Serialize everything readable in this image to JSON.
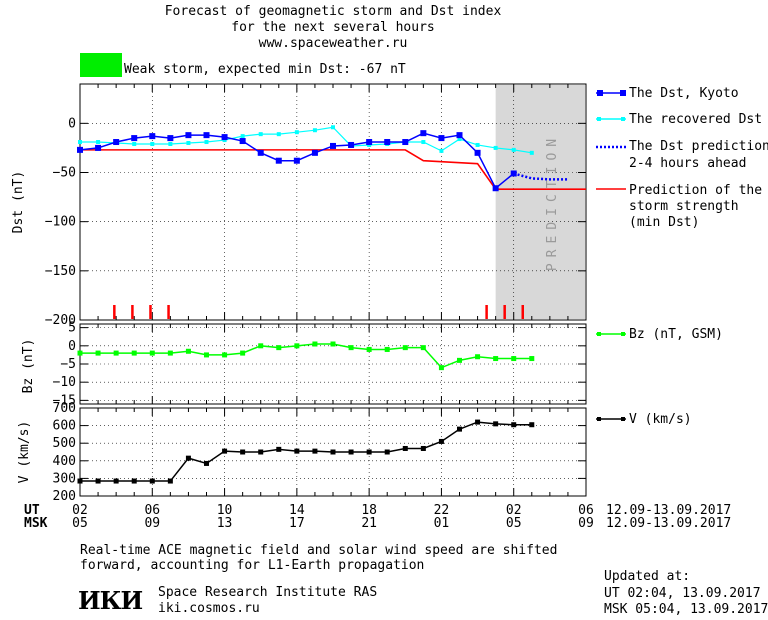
{
  "header": {
    "title_line1": "Forecast of geomagnetic storm and Dst index",
    "title_line2": "for the next several hours",
    "url": "www.spaceweather.ru",
    "storm_color": "#00ee00",
    "storm_text": "Weak storm, expected min Dst: -67 nT"
  },
  "legend": {
    "dst_kyoto": "The Dst, Kyoto",
    "dst_recovered": "The recovered Dst",
    "dst_prediction_line1": "The Dst prediction",
    "dst_prediction_line2": "2-4 hours ahead",
    "storm_strength_line1": "Prediction of the",
    "storm_strength_line2": "storm strength",
    "storm_strength_line3": "(min Dst)",
    "bz": "Bz (nT, GSM)",
    "v": "V (km/s)"
  },
  "prediction_label": "PREDICTION",
  "axes": {
    "ut_label": "UT",
    "msk_label": "MSK",
    "ut_ticks": [
      "02",
      "06",
      "10",
      "14",
      "18",
      "22",
      "02",
      "06"
    ],
    "msk_ticks": [
      "05",
      "09",
      "13",
      "17",
      "21",
      "01",
      "05",
      "09"
    ],
    "date_range_ut": "12.09-13.09.2017",
    "date_range_msk": "12.09-13.09.2017"
  },
  "chart_data": [
    {
      "type": "line",
      "ylabel": "Dst (nT)",
      "ylim": [
        -200,
        40
      ],
      "yticks": [
        0,
        -50,
        -100,
        -150,
        -200
      ],
      "xlim": [
        2,
        30
      ],
      "prediction_start": 25,
      "series": [
        {
          "name": "The Dst, Kyoto",
          "color": "#0000ff",
          "x": [
            2,
            3,
            4,
            5,
            6,
            7,
            8,
            9,
            10,
            11,
            12,
            13,
            14,
            15,
            16,
            17,
            18,
            19,
            20,
            21,
            22,
            23,
            24,
            25,
            26
          ],
          "y": [
            -27,
            -25,
            -19,
            -15,
            -13,
            -15,
            -12,
            -12,
            -14,
            -18,
            -30,
            -38,
            -38,
            -30,
            -23,
            -22,
            -19,
            -19,
            -19,
            -10,
            -15,
            -12,
            -30,
            -66,
            -51
          ]
        },
        {
          "name": "The recovered Dst",
          "color": "#00ffff",
          "x": [
            2,
            3,
            4,
            5,
            6,
            7,
            8,
            9,
            10,
            11,
            12,
            13,
            14,
            15,
            16,
            17,
            18,
            19,
            20,
            21,
            22,
            23,
            24,
            25,
            26,
            27
          ],
          "y": [
            -19,
            -19,
            -20,
            -21,
            -21,
            -21,
            -20,
            -19,
            -17,
            -13,
            -11,
            -11,
            -9,
            -7,
            -4,
            -23,
            -22,
            -21,
            -19,
            -19,
            -28,
            -16,
            -22,
            -25,
            -27,
            -30
          ]
        },
        {
          "name": "The Dst prediction 2-4 hours ahead",
          "color": "#0000ff",
          "x": [
            26,
            27,
            28,
            29
          ],
          "y": [
            -51,
            -56,
            -57,
            -57
          ]
        },
        {
          "name": "Prediction of the storm strength (min Dst)",
          "color": "#ff0000",
          "x": [
            2,
            20,
            21,
            23,
            24,
            25,
            30
          ],
          "y": [
            -27,
            -27,
            -38,
            -40,
            -41,
            -67,
            -67
          ]
        }
      ],
      "event_marks_x": [
        3.9,
        4.9,
        5.9,
        6.9,
        24.5,
        25.5,
        26.5
      ]
    },
    {
      "type": "line",
      "ylabel": "Bz (nT)",
      "ylim": [
        -16,
        6
      ],
      "yticks": [
        5,
        0,
        -5,
        -10,
        -15
      ],
      "series": [
        {
          "name": "Bz (nT, GSM)",
          "color": "#00ff00",
          "x": [
            2,
            3,
            4,
            5,
            6,
            7,
            8,
            9,
            10,
            11,
            12,
            13,
            14,
            15,
            16,
            17,
            18,
            19,
            20,
            21,
            22,
            23,
            24,
            25,
            26,
            27
          ],
          "y": [
            -2,
            -2,
            -2,
            -2,
            -2,
            -2,
            -1.5,
            -2.5,
            -2.5,
            -2,
            0,
            -0.5,
            0,
            0.5,
            0.5,
            -0.5,
            -1,
            -1,
            -0.5,
            -0.5,
            -6,
            -4,
            -3,
            -3.5,
            -3.5,
            -3.5
          ]
        }
      ]
    },
    {
      "type": "line",
      "ylabel": "V (km/s)",
      "ylim": [
        200,
        700
      ],
      "yticks": [
        700,
        600,
        500,
        400,
        300,
        200
      ],
      "series": [
        {
          "name": "V (km/s)",
          "color": "#000000",
          "x": [
            2,
            3,
            4,
            5,
            6,
            7,
            8,
            9,
            10,
            11,
            12,
            13,
            14,
            15,
            16,
            17,
            18,
            19,
            20,
            21,
            22,
            23,
            24,
            25,
            26,
            27
          ],
          "y": [
            285,
            285,
            285,
            285,
            285,
            285,
            415,
            385,
            455,
            450,
            450,
            465,
            455,
            455,
            450,
            450,
            450,
            450,
            470,
            470,
            510,
            580,
            620,
            610,
            605,
            605
          ]
        }
      ]
    }
  ],
  "footer": {
    "note_line1": "Real-time ACE magnetic field and solar wind speed are shifted",
    "note_line2": "forward, accounting for L1-Earth propagation",
    "logo": "ИКИ",
    "institute": "Space Research Institute RAS",
    "site": "iki.cosmos.ru",
    "updated_label": "Updated at:",
    "updated_ut": "UT   02:04, 13.09.2017",
    "updated_msk": "MSK 05:04, 13.09.2017"
  }
}
